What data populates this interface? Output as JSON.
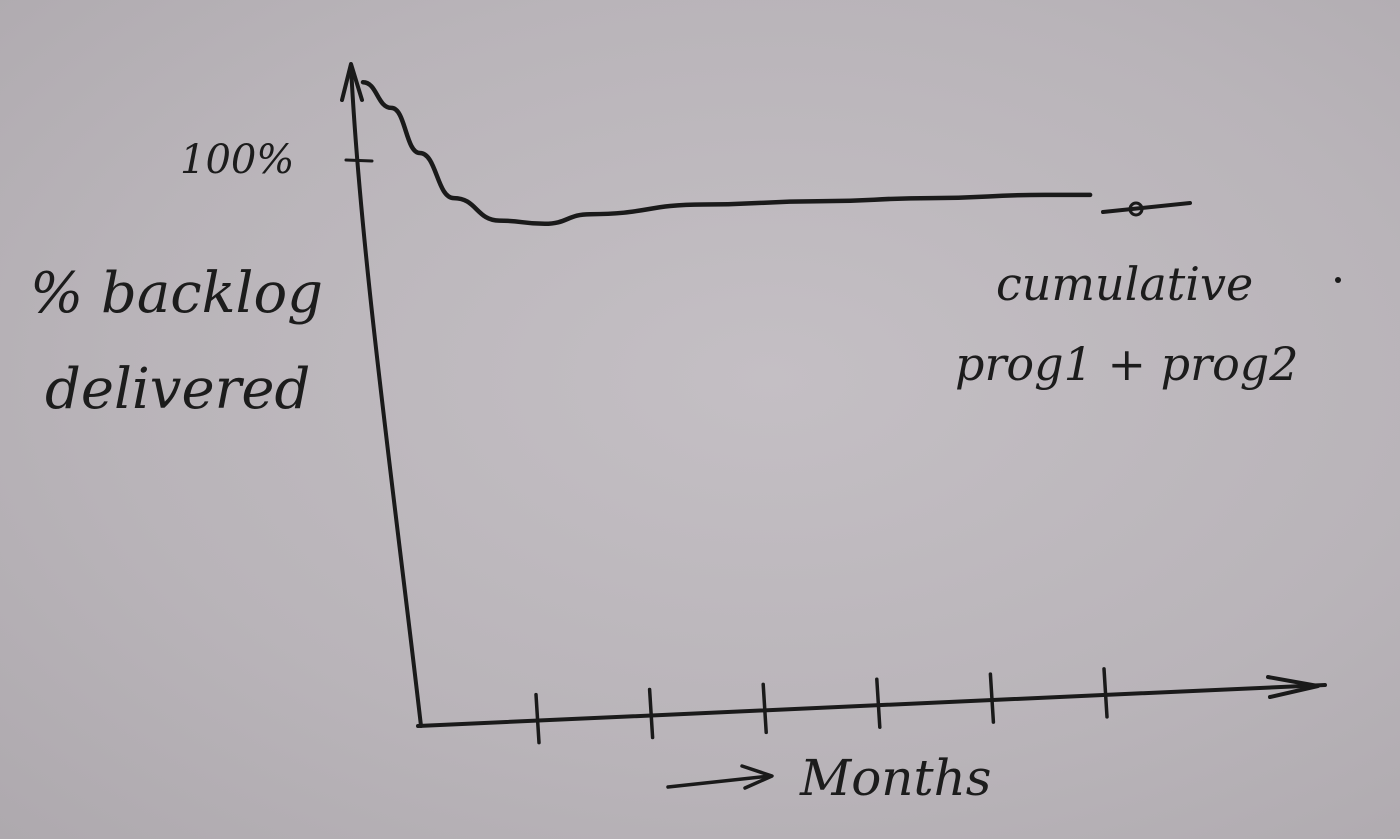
{
  "colors": {
    "ink": "#1a1a1a",
    "paper": "#bdb8bd"
  },
  "chart_data": {
    "type": "line",
    "title": "",
    "xlabel": "Months",
    "ylabel": "% backlog delivered",
    "ylabel_lines": [
      "% backlog",
      "delivered"
    ],
    "y_tick_labels": [
      "100%"
    ],
    "x_tick_labels": [],
    "x_tick_count": 6,
    "grid": false,
    "legend": "right",
    "series": [
      {
        "name": "cumulative prog1 + prog2",
        "name_lines": [
          "cumulative",
          "prog1 + prog2"
        ],
        "x": [
          0,
          0.25,
          0.5,
          0.8,
          1.2,
          1.6,
          2,
          3,
          4,
          5,
          6,
          6.4
        ],
        "y": [
          100,
          96,
          89,
          82,
          78.5,
          78,
          79.5,
          81,
          81.5,
          82,
          82.5,
          82.5
        ]
      }
    ],
    "ylim": [
      0,
      105
    ],
    "xlim": [
      0,
      8.3
    ]
  }
}
